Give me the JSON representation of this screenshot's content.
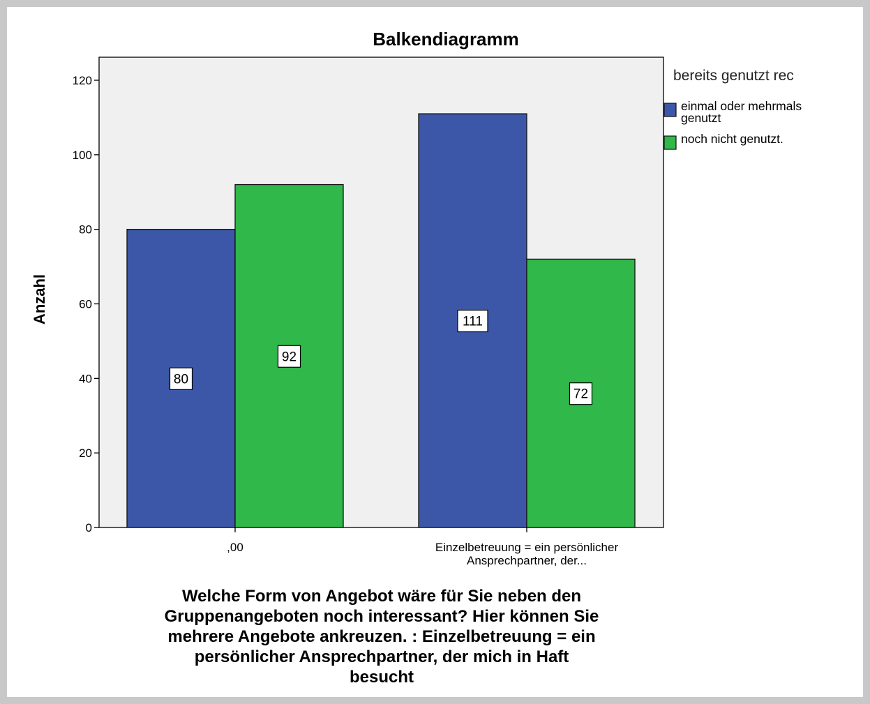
{
  "chart_data": {
    "type": "bar",
    "title": "Balkendiagramm",
    "ylabel": "Anzahl",
    "xlabel_lines": [
      "Welche Form von Angebot wäre für Sie neben den",
      "Gruppenangeboten noch interessant? Hier können Sie",
      "mehrere Angebote ankreuzen. : Einzelbetreuung = ein",
      "persönlicher Ansprechpartner, der mich in Haft",
      "besucht"
    ],
    "categories": [
      [
        ",00"
      ],
      [
        "Einzelbetreuung = ein persönlicher",
        "Ansprechpartner, der..."
      ]
    ],
    "ylim": [
      0,
      120
    ],
    "yticks": [
      0,
      20,
      40,
      60,
      80,
      100,
      120
    ],
    "legend": {
      "title": "bereits genutzt rec",
      "position": "right"
    },
    "series": [
      {
        "name_lines": [
          "einmal oder mehrmals",
          "genutzt"
        ],
        "color": "#3d57a8",
        "values": [
          80,
          111
        ]
      },
      {
        "name_lines": [
          "noch nicht genutzt."
        ],
        "color": "#30b84a",
        "values": [
          92,
          72
        ]
      }
    ],
    "plot_background": "#f0f0f0",
    "grid": false,
    "data_labels": true
  }
}
